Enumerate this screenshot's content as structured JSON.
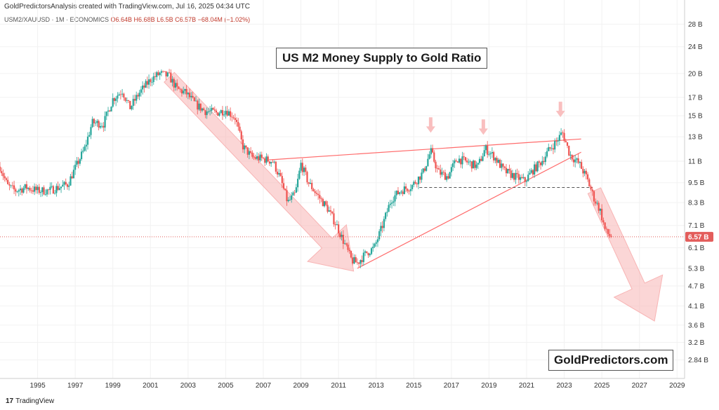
{
  "header": {
    "credit": "GoldPredictorsAnalysis created with TradingView.com, Jul 16, 2025 04:34 UTC",
    "symbol": "USM2/XAUUSD · 1M · ECONOMICS",
    "ohlc": "O6.64B  H6.68B  L6.5B  C6.57B  −68.04M (−1.02%)"
  },
  "title": "US M2 Money Supply to Gold Ratio",
  "brand": "GoldPredictors.com",
  "footer": {
    "logo": "17",
    "label": "TradingView"
  },
  "colors": {
    "up": "#26a69a",
    "down": "#ef5350",
    "trendline": "#ff6b6b",
    "arrow_fill": "#f8b4b4",
    "support": "#555555",
    "price_tag": "#e35d5b"
  },
  "chart_data": {
    "type": "candlestick",
    "y_scale": "log",
    "ylim": [
      2.6,
      30
    ],
    "xlim": [
      1993.0,
      2029.4
    ],
    "y_ticks": [
      {
        "v": 28,
        "label": "28 B"
      },
      {
        "v": 24,
        "label": "24 B"
      },
      {
        "v": 20,
        "label": "20 B"
      },
      {
        "v": 17,
        "label": "17 B"
      },
      {
        "v": 15,
        "label": "15 B"
      },
      {
        "v": 13,
        "label": "13 B"
      },
      {
        "v": 11,
        "label": "11 B"
      },
      {
        "v": 9.5,
        "label": "9.5 B"
      },
      {
        "v": 8.3,
        "label": "8.3 B"
      },
      {
        "v": 7.1,
        "label": "7.1 B"
      },
      {
        "v": 6.1,
        "label": "6.1 B"
      },
      {
        "v": 5.3,
        "label": "5.3 B"
      },
      {
        "v": 4.7,
        "label": "4.7 B"
      },
      {
        "v": 4.1,
        "label": "4.1 B"
      },
      {
        "v": 3.6,
        "label": "3.6 B"
      },
      {
        "v": 3.2,
        "label": "3.2 B"
      },
      {
        "v": 2.84,
        "label": "2.84 B"
      }
    ],
    "x_ticks": [
      {
        "v": 1995,
        "label": "1995"
      },
      {
        "v": 1997,
        "label": "1997"
      },
      {
        "v": 1999,
        "label": "1999"
      },
      {
        "v": 2001,
        "label": "2001"
      },
      {
        "v": 2003,
        "label": "2003"
      },
      {
        "v": 2005,
        "label": "2005"
      },
      {
        "v": 2007,
        "label": "2007"
      },
      {
        "v": 2009,
        "label": "2009"
      },
      {
        "v": 2011,
        "label": "2011"
      },
      {
        "v": 2013,
        "label": "2013"
      },
      {
        "v": 2015,
        "label": "2015"
      },
      {
        "v": 2017,
        "label": "2017"
      },
      {
        "v": 2019,
        "label": "2019"
      },
      {
        "v": 2021,
        "label": "2021"
      },
      {
        "v": 2023,
        "label": "2023"
      },
      {
        "v": 2025,
        "label": "2025"
      },
      {
        "v": 2027,
        "label": "2027"
      },
      {
        "v": 2029,
        "label": "2029"
      }
    ],
    "path": [
      [
        1993.0,
        10.6
      ],
      [
        1993.4,
        9.3
      ],
      [
        1993.8,
        9.0
      ],
      [
        1994.4,
        9.2
      ],
      [
        1995.0,
        9.0
      ],
      [
        1995.6,
        9.0
      ],
      [
        1996.1,
        9.2
      ],
      [
        1996.6,
        9.4
      ],
      [
        1997.0,
        10.5
      ],
      [
        1997.5,
        12.0
      ],
      [
        1997.9,
        14.3
      ],
      [
        1998.5,
        14.2
      ],
      [
        1999.0,
        16.8
      ],
      [
        1999.5,
        17.8
      ],
      [
        1999.9,
        15.8
      ],
      [
        2000.4,
        17.5
      ],
      [
        2001.0,
        19.2
      ],
      [
        2001.5,
        20.0
      ],
      [
        2002.0,
        19.6
      ],
      [
        2002.4,
        18.0
      ],
      [
        2002.9,
        17.5
      ],
      [
        2003.4,
        16.2
      ],
      [
        2003.9,
        15.5
      ],
      [
        2004.5,
        15.3
      ],
      [
        2005.0,
        15.6
      ],
      [
        2005.5,
        14.8
      ],
      [
        2005.9,
        12.2
      ],
      [
        2006.4,
        11.3
      ],
      [
        2006.9,
        11.2
      ],
      [
        2007.5,
        11.0
      ],
      [
        2007.9,
        9.8
      ],
      [
        2008.3,
        8.3
      ],
      [
        2008.7,
        8.8
      ],
      [
        2009.0,
        10.8
      ],
      [
        2009.4,
        9.5
      ],
      [
        2009.9,
        8.7
      ],
      [
        2010.4,
        8.0
      ],
      [
        2010.9,
        7.1
      ],
      [
        2011.3,
        6.3
      ],
      [
        2011.7,
        5.6
      ],
      [
        2012.0,
        5.5
      ],
      [
        2012.5,
        5.9
      ],
      [
        2012.9,
        6.1
      ],
      [
        2013.3,
        7.0
      ],
      [
        2013.8,
        8.5
      ],
      [
        2014.3,
        9.0
      ],
      [
        2014.9,
        9.3
      ],
      [
        2015.5,
        10.2
      ],
      [
        2015.9,
        11.8
      ],
      [
        2016.3,
        10.2
      ],
      [
        2016.8,
        9.9
      ],
      [
        2017.3,
        11.2
      ],
      [
        2017.9,
        10.9
      ],
      [
        2018.4,
        10.6
      ],
      [
        2018.8,
        12.0
      ],
      [
        2019.3,
        11.3
      ],
      [
        2019.8,
        10.3
      ],
      [
        2020.4,
        9.9
      ],
      [
        2020.9,
        9.6
      ],
      [
        2021.3,
        10.3
      ],
      [
        2021.8,
        11.0
      ],
      [
        2022.2,
        11.9
      ],
      [
        2022.6,
        12.6
      ],
      [
        2022.9,
        13.4
      ],
      [
        2023.3,
        11.5
      ],
      [
        2023.8,
        10.8
      ],
      [
        2024.2,
        9.8
      ],
      [
        2024.6,
        8.5
      ],
      [
        2024.9,
        7.9
      ],
      [
        2025.2,
        6.8
      ],
      [
        2025.5,
        6.57
      ]
    ],
    "last_value": 6.57,
    "last_label": "6.57 B",
    "support_level": 9.2,
    "support_range": [
      2015.3,
      2024.5
    ],
    "resistance_line": [
      [
        2007.3,
        11.1
      ],
      [
        2023.9,
        12.8
      ]
    ],
    "rising_line": [
      [
        2012.0,
        5.3
      ],
      [
        2023.9,
        11.7
      ]
    ],
    "peak_markers": [
      2015.9,
      2018.7,
      2022.8
    ],
    "down_arrows": [
      {
        "from": [
          2002.0,
          19.5
        ],
        "to": [
          2011.8,
          5.2
        ]
      },
      {
        "from": [
          2024.6,
          9.0
        ],
        "to": [
          2027.8,
          3.7
        ]
      }
    ]
  }
}
